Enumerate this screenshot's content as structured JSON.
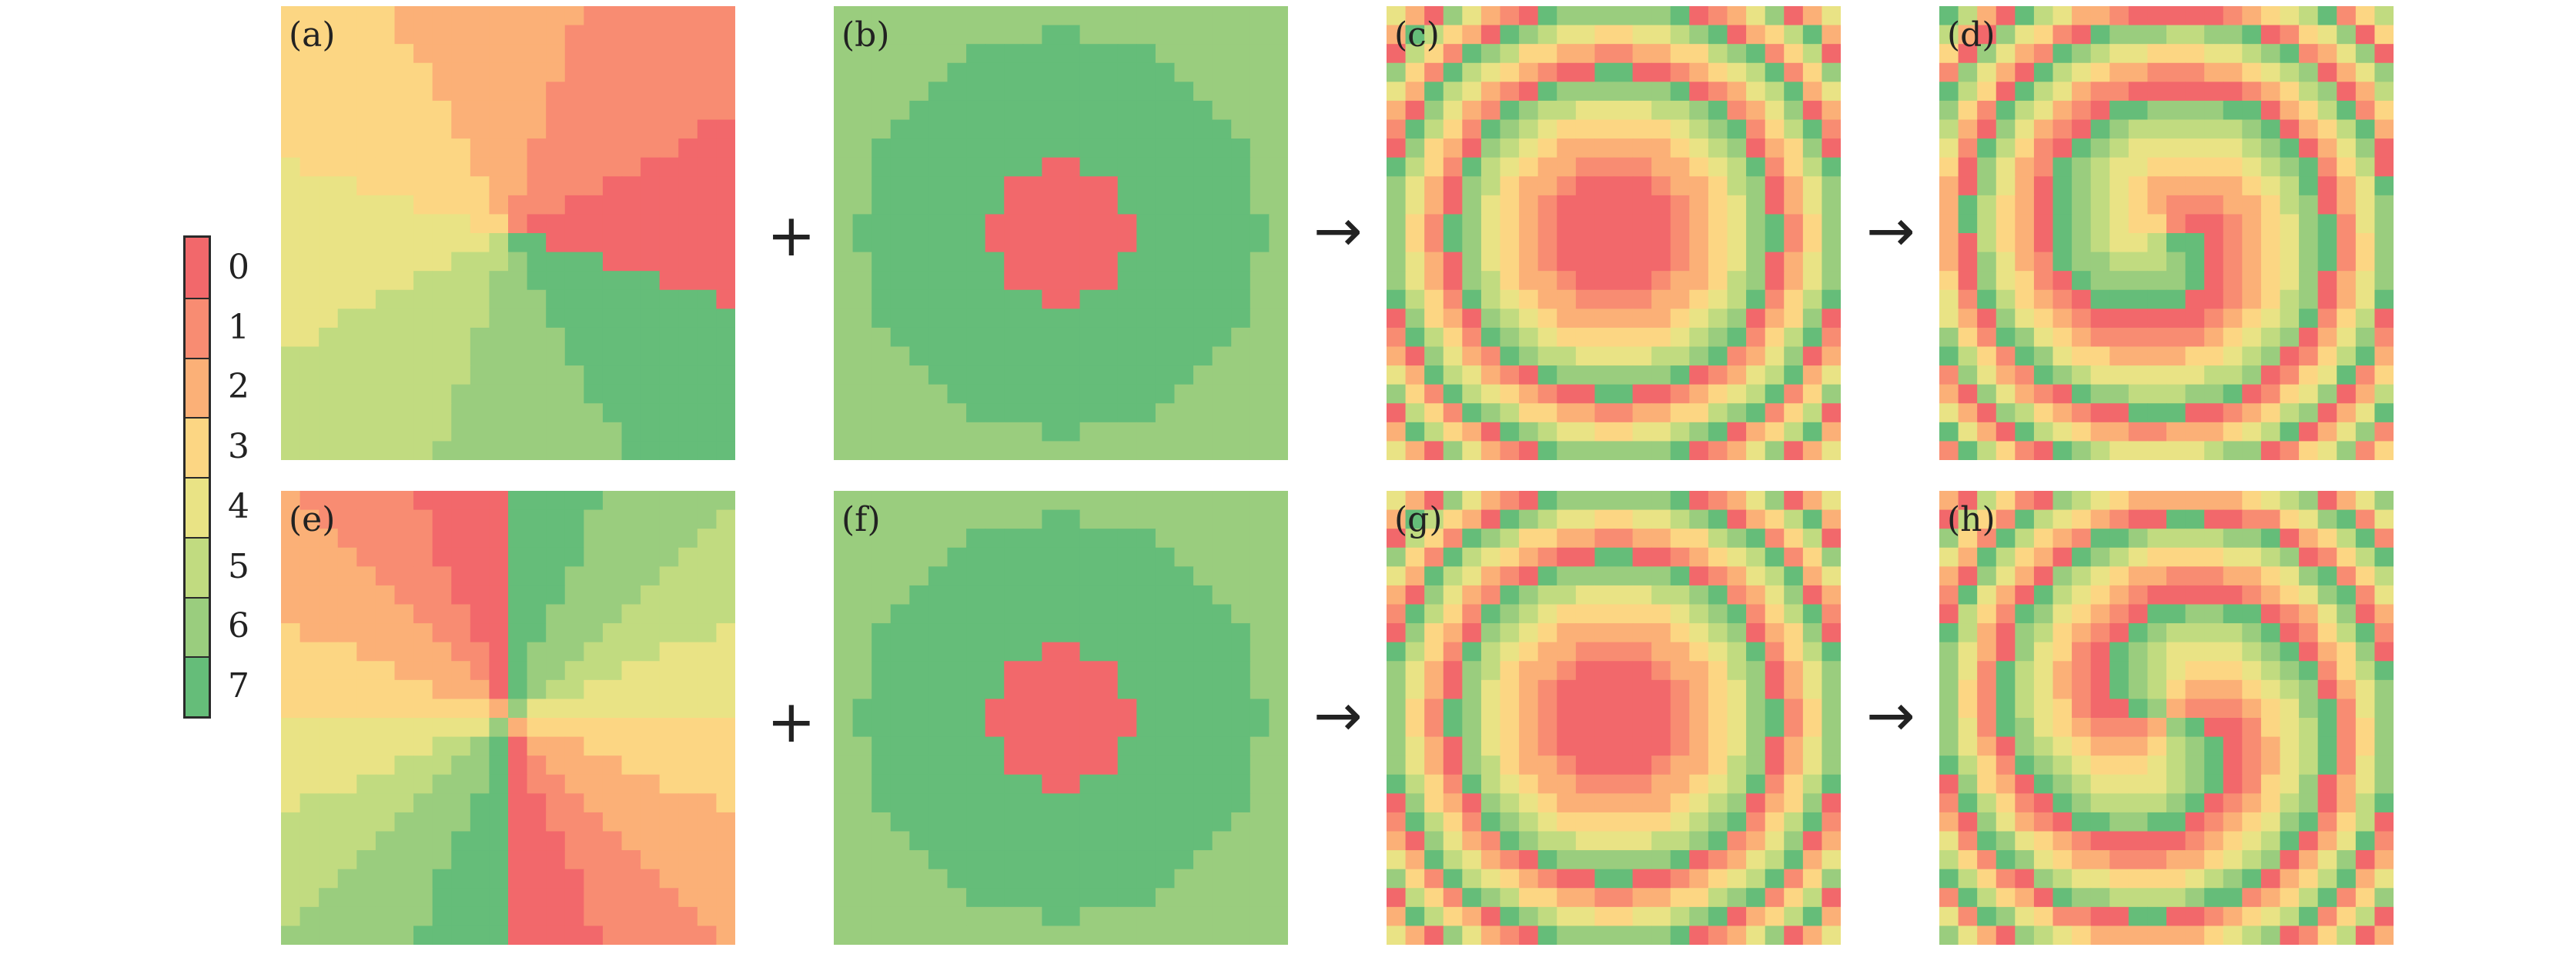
{
  "colorbar": {
    "labels": [
      "0",
      "1",
      "2",
      "3",
      "4",
      "5",
      "6",
      "7"
    ],
    "colors": [
      "#f2686b",
      "#f88c72",
      "#fbb077",
      "#fcd683",
      "#e9e385",
      "#c1db80",
      "#9acd7e",
      "#65bd79"
    ]
  },
  "operators": {
    "plus": "+",
    "arrow": "→"
  },
  "panels": [
    {
      "id": "a",
      "label": "(a)",
      "pattern": "vortex-l1"
    },
    {
      "id": "b",
      "label": "(b)",
      "pattern": "zone-plate"
    },
    {
      "id": "c",
      "label": "(c)",
      "pattern": "lens"
    },
    {
      "id": "d",
      "label": "(d)",
      "pattern": "spiral-l1"
    },
    {
      "id": "e",
      "label": "(e)",
      "pattern": "vortex-l2"
    },
    {
      "id": "f",
      "label": "(f)",
      "pattern": "zone-plate"
    },
    {
      "id": "g",
      "label": "(g)",
      "pattern": "lens"
    },
    {
      "id": "h",
      "label": "(h)",
      "pattern": "spiral-l2"
    }
  ]
}
